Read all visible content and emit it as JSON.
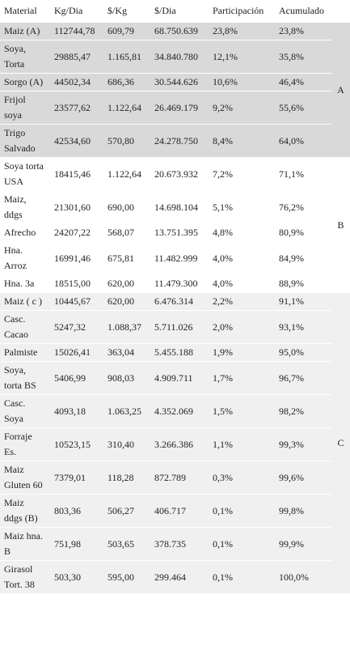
{
  "table": {
    "header": [
      "Material",
      "Kg/Dia",
      "$/Kg",
      "$/Dia",
      "Participación",
      "Acumulado"
    ],
    "groups": [
      {
        "label": "A",
        "rows": [
          [
            "Maiz (A)",
            "112744,78",
            "609,79",
            "68.750.639",
            "23,8%",
            "23,8%"
          ],
          [
            "Soya, Torta",
            "29885,47",
            "1.165,81",
            "34.840.780",
            "12,1%",
            "35,8%"
          ],
          [
            "Sorgo (A)",
            "44502,34",
            "686,36",
            "30.544.626",
            "10,6%",
            "46,4%"
          ],
          [
            "Frijol soya",
            "23577,62",
            "1.122,64",
            "26.469.179",
            "9,2%",
            "55,6%"
          ],
          [
            "Trigo Salvado",
            "42534,60",
            "570,80",
            "24.278.750",
            "8,4%",
            "64,0%"
          ]
        ]
      },
      {
        "label": "B",
        "rows": [
          [
            "Soya torta USA",
            "18415,46",
            "1.122,64",
            "20.673.932",
            "7,2%",
            "71,1%"
          ],
          [
            "Maiz, ddgs",
            "21301,60",
            "690,00",
            "14.698.104",
            "5,1%",
            "76,2%"
          ],
          [
            "Afrecho",
            "24207,22",
            "568,07",
            "13.751.395",
            "4,8%",
            "80,9%"
          ],
          [
            "Hna. Arroz",
            "16991,46",
            "675,81",
            "11.482.999",
            "4,0%",
            "84,9%"
          ],
          [
            "Hna. 3a",
            "18515,00",
            "620,00",
            "11.479.300",
            "4,0%",
            "88,9%"
          ]
        ]
      },
      {
        "label": "C",
        "rows": [
          [
            "Maiz ( c )",
            "10445,67",
            "620,00",
            "6.476.314",
            "2,2%",
            "91,1%"
          ],
          [
            "Casc. Cacao",
            "5247,32",
            "1.088,37",
            "5.711.026",
            "2,0%",
            "93,1%"
          ],
          [
            "Palmiste",
            "15026,41",
            "363,04",
            "5.455.188",
            "1,9%",
            "95,0%"
          ],
          [
            "Soya, torta BS",
            "5406,99",
            "908,03",
            "4.909.711",
            "1,7%",
            "96,7%"
          ],
          [
            "Casc. Soya",
            "4093,18",
            "1.063,25",
            "4.352.069",
            "1,5%",
            "98,2%"
          ],
          [
            "Forraje Es.",
            "10523,15",
            "310,40",
            "3.266.386",
            "1,1%",
            "99,3%"
          ],
          [
            "Maiz Gluten 60",
            "7379,01",
            "118,28",
            "872.789",
            "0,3%",
            "99,6%"
          ],
          [
            "Maiz ddgs (B)",
            "803,36",
            "506,27",
            "406.717",
            "0,1%",
            "99,8%"
          ],
          [
            "Maiz hna. B",
            "751,98",
            "503,65",
            "378.735",
            "0,1%",
            "99,9%"
          ],
          [
            "Girasol Tort. 38",
            "503,30",
            "595,00",
            "299.464",
            "0,1%",
            "100,0%"
          ]
        ]
      }
    ]
  }
}
